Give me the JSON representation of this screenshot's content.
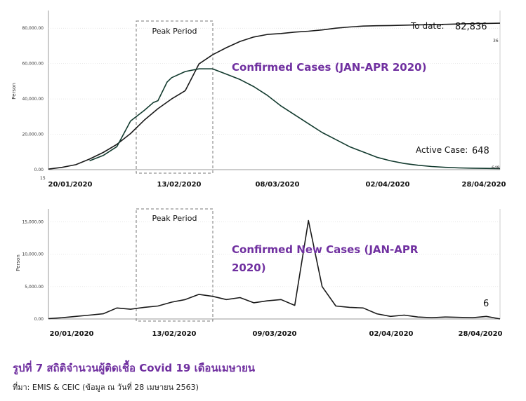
{
  "chart_data": [
    {
      "type": "line",
      "title": "Confirmed Cases (JAN-APR 2020)",
      "ylabel": "Person",
      "ylim": [
        0,
        90000
      ],
      "yticks": [
        "0.00",
        "20,000.00",
        "40,000.00",
        "60,000.00",
        "80,000.00"
      ],
      "y_ticks_values": [
        0,
        20000,
        40000,
        60000,
        80000
      ],
      "x_dates": [
        "20/01/2020",
        "13/02/2020",
        "08/03/2020",
        "02/04/2020",
        "28/04/2020"
      ],
      "highlight": {
        "label": "Peak Period",
        "from": "07/02/2020",
        "to": "23/02/2020"
      },
      "annotations": {
        "total_label": "To date:",
        "total_value": "82,836",
        "total_end_label": "36",
        "active_label": "Active Case:",
        "active_value": "648",
        "active_end_label": "648",
        "origin_label": "15"
      },
      "series": [
        {
          "x": [
            0,
            3,
            6,
            9,
            12,
            15,
            18,
            21,
            24,
            27,
            30,
            33,
            36,
            39,
            42,
            45,
            48,
            51,
            54,
            57,
            60,
            63,
            66,
            69,
            72,
            75,
            78,
            81,
            84,
            87,
            90,
            93,
            96,
            99
          ],
          "values": [
            300,
            1300,
            2800,
            6000,
            9700,
            14300,
            20400,
            28000,
            34500,
            40000,
            44700,
            59800,
            65000,
            69000,
            72500,
            75000,
            76500,
            77000,
            77800,
            78300,
            79000,
            80000,
            80700,
            81200,
            81400,
            81500,
            81700,
            81900,
            82000,
            82200,
            82400,
            82600,
            82700,
            82836
          ]
        },
        {
          "x": [
            9,
            12,
            15,
            18,
            21,
            23,
            24,
            26,
            27,
            30,
            33,
            36,
            39,
            42,
            45,
            48,
            51,
            54,
            57,
            60,
            63,
            66,
            69,
            72,
            75,
            78,
            81,
            84,
            87,
            90,
            93,
            96,
            99
          ],
          "values": [
            5000,
            8000,
            13000,
            27500,
            33500,
            38000,
            39000,
            49500,
            52000,
            55500,
            57000,
            57000,
            54000,
            51000,
            47000,
            42000,
            36000,
            31000,
            26000,
            21000,
            17000,
            13000,
            10000,
            7000,
            5000,
            3500,
            2500,
            1800,
            1300,
            1000,
            850,
            700,
            648
          ]
        }
      ]
    },
    {
      "type": "line",
      "title": "Confirmed New Cases (JAN-APR",
      "title_line2": "2020)",
      "ylabel": "Person",
      "ylim": [
        0,
        17000
      ],
      "yticks": [
        "0.00",
        "5,000.00",
        "10,000.00",
        "15,000.00"
      ],
      "y_ticks_values": [
        0,
        5000,
        10000,
        15000
      ],
      "x_dates": [
        "20/01/2020",
        "13/02/2020",
        "09/03/2020",
        "02/04/2020",
        "28/04/2020"
      ],
      "highlight": {
        "label": "Peak Period",
        "from": "07/02/2020",
        "to": "23/02/2020"
      },
      "annotations": {
        "last_value": "6"
      },
      "series": [
        {
          "x": [
            0,
            3,
            6,
            9,
            12,
            15,
            18,
            21,
            24,
            27,
            30,
            33,
            36,
            39,
            42,
            45,
            48,
            51,
            54,
            57,
            60,
            63,
            66,
            69,
            72,
            75,
            78,
            81,
            84,
            87,
            90,
            93,
            96,
            99
          ],
          "values": [
            50,
            200,
            400,
            600,
            800,
            1700,
            1500,
            1800,
            2000,
            2600,
            3000,
            3800,
            3500,
            3000,
            3300,
            2500,
            2800,
            3000,
            2100,
            15200,
            5000,
            2000,
            1800,
            1700,
            800,
            400,
            600,
            300,
            200,
            300,
            250,
            200,
            400,
            6
          ]
        }
      ]
    }
  ],
  "caption": {
    "title": "รูปที่ 7 สถิติจำนวนผู้ติดเชื้อ Covid 19 เดือนเมษายน",
    "source": "ที่มา: EMIS & CEIC (ข้อมูล ณ วันที่ 28 เมษายน 2563)"
  }
}
